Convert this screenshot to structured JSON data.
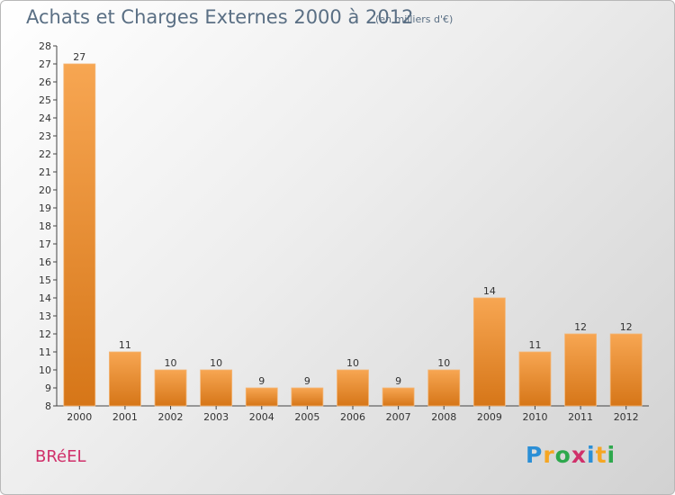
{
  "header": {
    "title": "Achats et Charges Externes 2000 à 2012",
    "subtitle": "(en milliers d'€)"
  },
  "footer": {
    "commune": "BRéEL",
    "logo": [
      "P",
      "r",
      "o",
      "x",
      "i",
      "t",
      "i"
    ],
    "logo_colors": [
      "#2b8fd6",
      "#f5a623",
      "#2ea84d",
      "#d0306a",
      "#2b8fd6",
      "#f5a623",
      "#2ea84d"
    ]
  },
  "colors": {
    "bar_top": "#f7a652",
    "bar_bottom": "#d67618",
    "title": "#5a6f84",
    "commune": "#d0306a"
  },
  "chart_data": {
    "type": "bar",
    "title": "Achats et Charges Externes 2000 à 2012",
    "subtitle": "(en milliers d'€)",
    "categories": [
      "2000",
      "2001",
      "2002",
      "2003",
      "2004",
      "2005",
      "2006",
      "2007",
      "2008",
      "2009",
      "2010",
      "2011",
      "2012"
    ],
    "values": [
      27,
      11,
      10,
      10,
      9,
      9,
      10,
      9,
      10,
      14,
      11,
      12,
      12
    ],
    "yticks": [
      8,
      9,
      10,
      11,
      12,
      13,
      14,
      15,
      16,
      17,
      18,
      19,
      20,
      21,
      22,
      23,
      24,
      25,
      26,
      27,
      28
    ],
    "ylim": [
      8,
      28
    ],
    "grid": false,
    "xlabel": "",
    "ylabel": ""
  }
}
